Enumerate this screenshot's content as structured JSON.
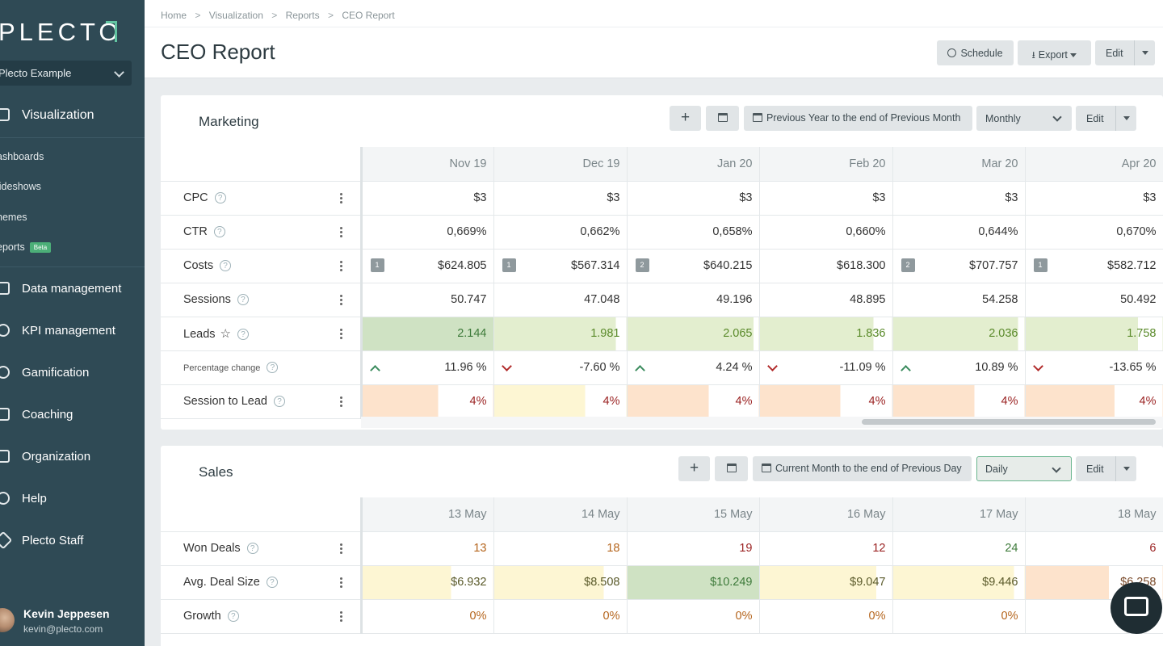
{
  "sidebar": {
    "logo": "PLECTO",
    "org": "Plecto Example",
    "nav_active": "Visualization",
    "sub_items": [
      "ashboards",
      "lideshows",
      "hemes",
      "eports"
    ],
    "beta": "Beta",
    "nav_items": [
      "Data management",
      "KPI management",
      "Gamification",
      "Coaching",
      "Organization",
      "Help",
      "Plecto Staff"
    ],
    "user_name": "Kevin Jeppesen",
    "user_email": "kevin@plecto.com"
  },
  "breadcrumb": [
    "Home",
    "Visualization",
    "Reports",
    "CEO Report"
  ],
  "breadcrumb_sep": ">",
  "page_title": "CEO Report",
  "toolbar": {
    "schedule": "Schedule",
    "export": "Export",
    "edit": "Edit"
  },
  "marketing": {
    "title": "Marketing",
    "period": "Previous Year to the end of Previous Month",
    "interval": "Monthly",
    "edit": "Edit",
    "columns": [
      "Nov 19",
      "Dec 19",
      "Jan 20",
      "Feb 20",
      "Mar 20",
      "Apr 20"
    ],
    "rows": {
      "cpc": {
        "label": "CPC",
        "values": [
          "$3",
          "$3",
          "$3",
          "$3",
          "$3",
          "$3"
        ]
      },
      "ctr": {
        "label": "CTR",
        "values": [
          "0,669%",
          "0,662%",
          "0,658%",
          "0,660%",
          "0,644%",
          "0,670%"
        ]
      },
      "costs": {
        "label": "Costs",
        "values": [
          "$624.805",
          "$567.314",
          "$640.215",
          "$618.300",
          "$707.757",
          "$582.712"
        ],
        "ranks": [
          "1",
          "1",
          "2",
          "",
          "2",
          "1"
        ]
      },
      "sessions": {
        "label": "Sessions",
        "values": [
          "50.747",
          "47.048",
          "49.196",
          "48.895",
          "54.258",
          "50.492"
        ]
      },
      "leads": {
        "label": "Leads",
        "values": [
          "2.144",
          "1.981",
          "2.065",
          "1.836",
          "2.036",
          "1.758"
        ],
        "fill": [
          1.0,
          0.92,
          0.96,
          0.86,
          0.95,
          0.82
        ]
      },
      "pct": {
        "label": "Percentage change",
        "values": [
          "11.96 %",
          "-7.60 %",
          "4.24 %",
          "-11.09 %",
          "10.89 %",
          "-13.65 %"
        ],
        "direction": [
          "up",
          "down",
          "up",
          "down",
          "up",
          "down"
        ]
      },
      "s2l": {
        "label": "Session to Lead",
        "values": [
          "4%",
          "4%",
          "4%",
          "4%",
          "4%",
          "4%"
        ],
        "fill": [
          0.58,
          0.69,
          0.62,
          0.61,
          0.62,
          0.65
        ]
      }
    }
  },
  "sales": {
    "title": "Sales",
    "period": "Current Month to the end of Previous Day",
    "interval": "Daily",
    "edit": "Edit",
    "columns": [
      "13 May",
      "14 May",
      "15 May",
      "16 May",
      "17 May",
      "18 May"
    ],
    "rows": {
      "won": {
        "label": "Won Deals",
        "values": [
          "13",
          "18",
          "19",
          "12",
          "24",
          "6"
        ]
      },
      "avg": {
        "label": "Avg. Deal Size",
        "values": [
          "$6.932",
          "$8.508",
          "$10.249",
          "$9.047",
          "$9.446",
          "$6.258"
        ],
        "fill": [
          0.68,
          0.83,
          1.0,
          0.88,
          0.92,
          0.61
        ]
      },
      "growth": {
        "label": "Growth",
        "values": [
          "0%",
          "0%",
          "0%",
          "0%",
          "0%",
          "0%"
        ]
      }
    }
  },
  "colors": {
    "sidebar": "#2f4a55",
    "accent_green": "#62c4a1",
    "heat_green": "#cfe2c3",
    "heat_yellow": "#fdf6d3",
    "heat_orange": "#fde3cc"
  }
}
